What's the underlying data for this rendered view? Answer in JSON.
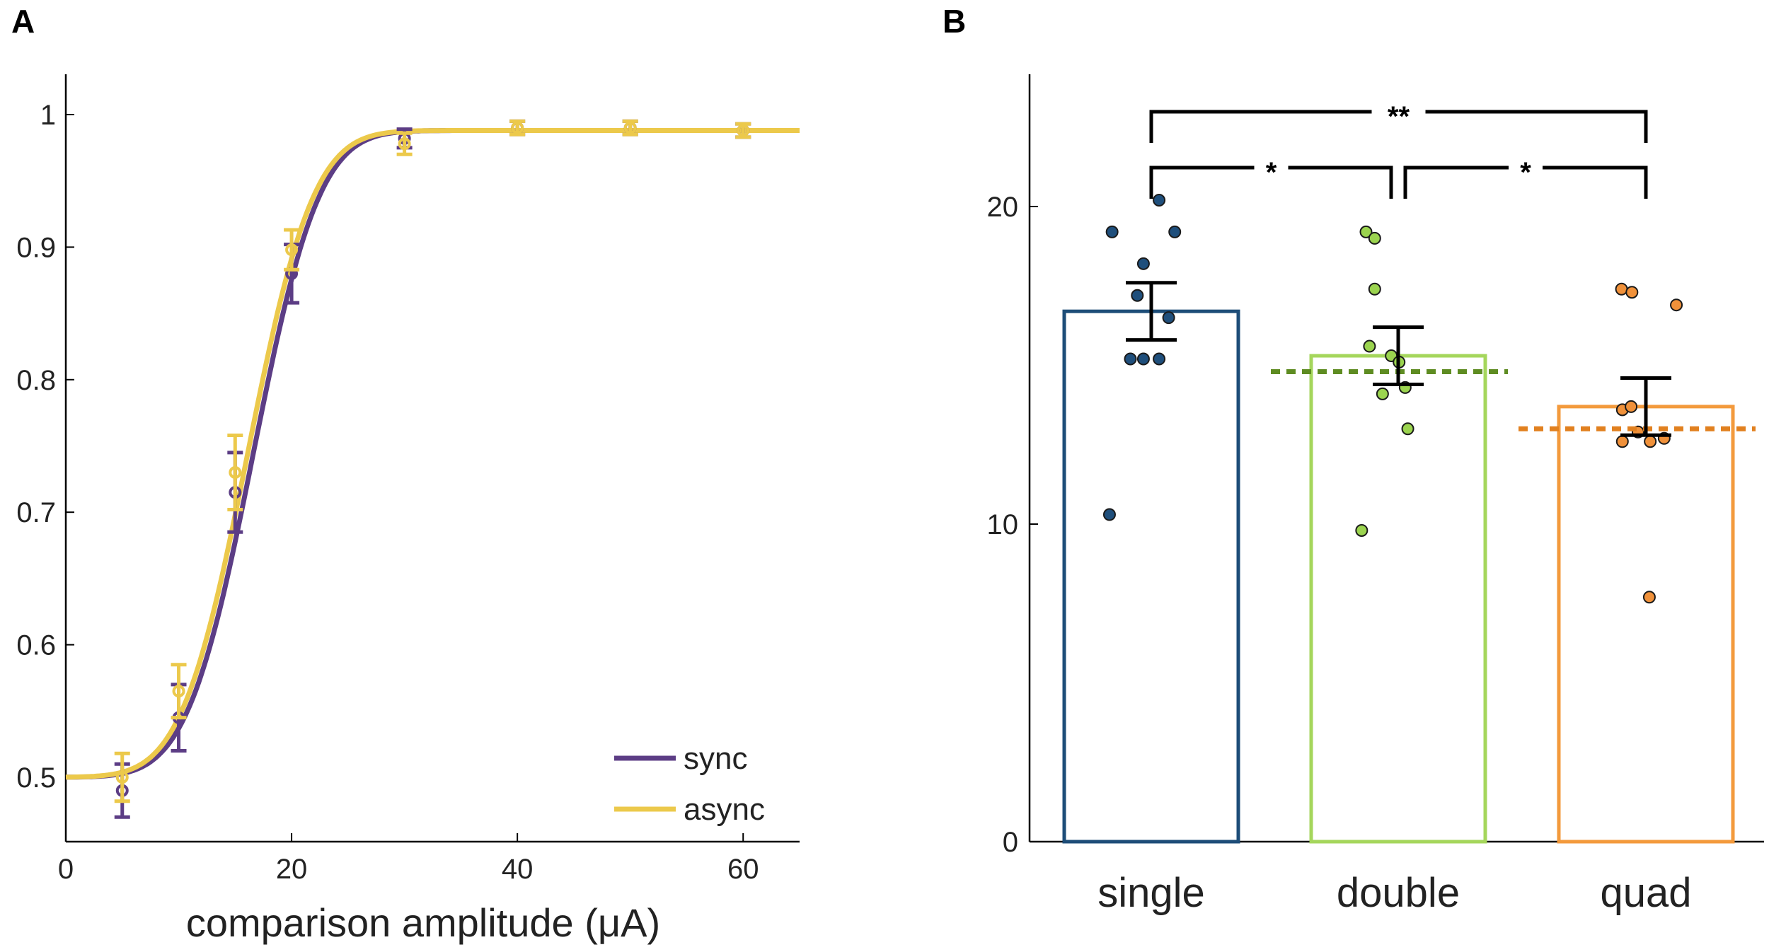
{
  "chart_data": [
    {
      "panel": "A",
      "type": "line",
      "xlabel": "comparison amplitude (μA)",
      "ylabel": "",
      "xlim": [
        0,
        65
      ],
      "ylim": [
        0.45,
        1.03
      ],
      "xticks": [
        0,
        20,
        40,
        60
      ],
      "xtick_labels": [
        "0",
        "20",
        "40",
        "60"
      ],
      "yticks": [
        0.5,
        0.6,
        0.7,
        0.8,
        0.9,
        1.0
      ],
      "ytick_labels": [
        "0.5",
        "0.6",
        "0.7",
        "0.8",
        "0.9",
        "1"
      ],
      "legend_position": "bottom-right",
      "series": [
        {
          "name": "sync",
          "color": "#5c3d85",
          "fit": {
            "lower": 0.5,
            "upper": 0.988,
            "mu": 16.6,
            "sigma": 4.6
          },
          "points": [
            {
              "x": 5,
              "y": 0.49,
              "err": 0.02
            },
            {
              "x": 10,
              "y": 0.545,
              "err": 0.025
            },
            {
              "x": 15,
              "y": 0.715,
              "err": 0.03
            },
            {
              "x": 20,
              "y": 0.88,
              "err": 0.022
            },
            {
              "x": 30,
              "y": 0.982,
              "err": 0.007
            },
            {
              "x": 40,
              "y": 0.99,
              "err": 0.005
            },
            {
              "x": 50,
              "y": 0.99,
              "err": 0.005
            },
            {
              "x": 60,
              "y": 0.988,
              "err": 0.005
            }
          ]
        },
        {
          "name": "async",
          "color": "#ecc94b",
          "fit": {
            "lower": 0.5,
            "upper": 0.988,
            "mu": 16.1,
            "sigma": 4.6
          },
          "points": [
            {
              "x": 5,
              "y": 0.5,
              "err": 0.018
            },
            {
              "x": 10,
              "y": 0.565,
              "err": 0.02
            },
            {
              "x": 15,
              "y": 0.73,
              "err": 0.028
            },
            {
              "x": 20,
              "y": 0.898,
              "err": 0.015
            },
            {
              "x": 30,
              "y": 0.978,
              "err": 0.008
            },
            {
              "x": 40,
              "y": 0.99,
              "err": 0.005
            },
            {
              "x": 50,
              "y": 0.99,
              "err": 0.005
            },
            {
              "x": 60,
              "y": 0.988,
              "err": 0.005
            }
          ]
        }
      ]
    },
    {
      "panel": "B",
      "type": "bar",
      "categories": [
        "single",
        "double",
        "quad"
      ],
      "values": [
        16.7,
        15.3,
        13.7
      ],
      "errors": [
        0.9,
        0.9,
        0.9
      ],
      "colors": [
        "#1d4d78",
        "#a5d65c",
        "#f39a3c"
      ],
      "marker_colors": [
        "#1f4f7c",
        "#9bd44f",
        "#f0913a"
      ],
      "reference_lines": [
        {
          "category": "double",
          "value": 14.8,
          "color": "#5e8c22"
        },
        {
          "category": "quad",
          "value": 13.0,
          "color": "#e1801f"
        }
      ],
      "ylim": [
        0,
        24.2
      ],
      "yticks": [
        0,
        10,
        20
      ],
      "ytick_labels": [
        "0",
        "10",
        "20"
      ],
      "xlabel": "",
      "ylabel": "",
      "points": [
        [
          19.2,
          18.2,
          20.2,
          17.2,
          19.2,
          16.5,
          15.2,
          15.2,
          15.2,
          10.3
        ],
        [
          19.2,
          19.0,
          17.4,
          15.6,
          15.3,
          15.1,
          14.3,
          14.1,
          13.0,
          9.8
        ],
        [
          17.4,
          17.3,
          16.9,
          13.6,
          13.7,
          12.9,
          12.6,
          12.6,
          12.7,
          7.7
        ]
      ],
      "point_offsets": [
        [
          -0.45,
          -0.09,
          0.09,
          -0.16,
          0.27,
          0.2,
          0.09,
          -0.09,
          -0.24,
          -0.48
        ],
        [
          -0.37,
          -0.27,
          -0.27,
          -0.33,
          -0.08,
          0.01,
          0.08,
          -0.18,
          0.11,
          -0.42
        ],
        [
          -0.28,
          -0.16,
          0.35,
          -0.27,
          -0.17,
          -0.09,
          -0.27,
          0.05,
          0.21,
          0.04
        ]
      ],
      "significance": [
        {
          "from": "single",
          "to": "double",
          "label": "*",
          "level": 1
        },
        {
          "from": "double",
          "to": "quad",
          "label": "*",
          "level": 1
        },
        {
          "from": "single",
          "to": "quad",
          "label": "**",
          "level": 2
        }
      ]
    }
  ]
}
